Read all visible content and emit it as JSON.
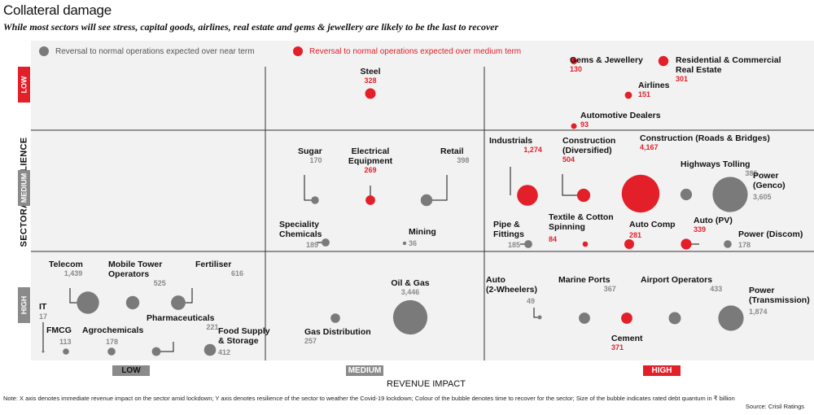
{
  "title": "Collateral damage",
  "subtitle": "While most sectors will see stress, capital goods, airlines, real estate and gems & jewellery are likely to be the last to recover",
  "legend": {
    "near": "Reversal to normal operations expected over near term",
    "medium": "Reversal to normal operations expected over medium term"
  },
  "colors": {
    "near": "#7a7a7a",
    "medium": "#e3202a",
    "panel": "#f2f2f2",
    "grid": "#333333"
  },
  "note": "Note: X axis denotes immediate revenue impact on the sector amid lockdown; Y axis denotes resilience of the sector to weather the Covid-19 lockdown; Colour of the bubble denotes time to recover for the sector; Size of the bubble indicates rated debt quantum in ₹ billion",
  "source": "Source: Crisil Ratings",
  "chart_data": {
    "type": "scatter",
    "title": "Collateral damage",
    "xlabel": "REVENUE IMPACT",
    "ylabel": "SECTORAL RESILIENCE",
    "x_categories": [
      "LOW",
      "MEDIUM",
      "HIGH"
    ],
    "y_categories": [
      "LOW",
      "MEDIUM",
      "HIGH"
    ],
    "size_unit": "rated debt, ₹ billion",
    "points": [
      {
        "name": "Steel",
        "x": "MEDIUM",
        "y": "LOW",
        "debt": "328",
        "recovery": "medium"
      },
      {
        "name": "Gems & Jewellery",
        "x": "HIGH",
        "y": "LOW",
        "debt": "130",
        "recovery": "medium"
      },
      {
        "name": "Residential & Commercial Real Estate",
        "x": "HIGH",
        "y": "LOW",
        "debt": "301",
        "recovery": "medium"
      },
      {
        "name": "Airlines",
        "x": "HIGH",
        "y": "LOW",
        "debt": "151",
        "recovery": "medium"
      },
      {
        "name": "Automotive Dealers",
        "x": "HIGH",
        "y": "LOW",
        "debt": "93",
        "recovery": "medium"
      },
      {
        "name": "Sugar",
        "x": "MEDIUM",
        "y": "MEDIUM",
        "debt": "170",
        "recovery": "near"
      },
      {
        "name": "Electrical Equipment",
        "x": "MEDIUM",
        "y": "MEDIUM",
        "debt": "269",
        "recovery": "medium"
      },
      {
        "name": "Retail",
        "x": "MEDIUM",
        "y": "MEDIUM",
        "debt": "398",
        "recovery": "near"
      },
      {
        "name": "Speciality Chemicals",
        "x": "MEDIUM",
        "y": "MEDIUM",
        "debt": "189",
        "recovery": "near"
      },
      {
        "name": "Mining",
        "x": "MEDIUM",
        "y": "MEDIUM",
        "debt": "36",
        "recovery": "near"
      },
      {
        "name": "Industrials",
        "x": "HIGH",
        "y": "MEDIUM",
        "debt": "1,274",
        "recovery": "medium"
      },
      {
        "name": "Construction (Diversified)",
        "x": "HIGH",
        "y": "MEDIUM",
        "debt": "504",
        "recovery": "medium"
      },
      {
        "name": "Construction (Roads & Bridges)",
        "x": "HIGH",
        "y": "MEDIUM",
        "debt": "4,167",
        "recovery": "medium"
      },
      {
        "name": "Highways Tolling",
        "x": "HIGH",
        "y": "MEDIUM",
        "debt": "386",
        "recovery": "near"
      },
      {
        "name": "Power (Genco)",
        "x": "HIGH",
        "y": "MEDIUM",
        "debt": "3,605",
        "recovery": "near"
      },
      {
        "name": "Pipe & Fittings",
        "x": "HIGH",
        "y": "MEDIUM",
        "debt": "185",
        "recovery": "near"
      },
      {
        "name": "Textile & Cotton Spinning",
        "x": "HIGH",
        "y": "MEDIUM",
        "debt": "84",
        "recovery": "medium"
      },
      {
        "name": "Auto Comp",
        "x": "HIGH",
        "y": "MEDIUM",
        "debt": "281",
        "recovery": "medium"
      },
      {
        "name": "Auto (PV)",
        "x": "HIGH",
        "y": "MEDIUM",
        "debt": "339",
        "recovery": "medium"
      },
      {
        "name": "Power (Discom)",
        "x": "HIGH",
        "y": "MEDIUM",
        "debt": "178",
        "recovery": "near"
      },
      {
        "name": "Telecom",
        "x": "LOW",
        "y": "HIGH",
        "debt": "1,439",
        "recovery": "near"
      },
      {
        "name": "Mobile Tower Operators",
        "x": "LOW",
        "y": "HIGH",
        "debt": "525",
        "recovery": "near"
      },
      {
        "name": "Fertiliser",
        "x": "LOW",
        "y": "HIGH",
        "debt": "616",
        "recovery": "near"
      },
      {
        "name": "IT",
        "x": "LOW",
        "y": "HIGH",
        "debt": "17",
        "recovery": "near"
      },
      {
        "name": "Pharmaceuticals",
        "x": "LOW",
        "y": "HIGH",
        "debt": "221",
        "recovery": "near"
      },
      {
        "name": "FMCG",
        "x": "LOW",
        "y": "HIGH",
        "debt": "113",
        "recovery": "near"
      },
      {
        "name": "Agrochemicals",
        "x": "LOW",
        "y": "HIGH",
        "debt": "178",
        "recovery": "near"
      },
      {
        "name": "Food Supply & Storage",
        "x": "LOW",
        "y": "HIGH",
        "debt": "412",
        "recovery": "near"
      },
      {
        "name": "Oil & Gas",
        "x": "MEDIUM",
        "y": "HIGH",
        "debt": "3,446",
        "recovery": "near"
      },
      {
        "name": "Gas Distribution",
        "x": "MEDIUM",
        "y": "HIGH",
        "debt": "257",
        "recovery": "near"
      },
      {
        "name": "Auto (2-Wheelers)",
        "x": "HIGH",
        "y": "HIGH",
        "debt": "49",
        "recovery": "near"
      },
      {
        "name": "Marine Ports",
        "x": "HIGH",
        "y": "HIGH",
        "debt": "367",
        "recovery": "near"
      },
      {
        "name": "Cement",
        "x": "HIGH",
        "y": "HIGH",
        "debt": "371",
        "recovery": "medium"
      },
      {
        "name": "Airport Operators",
        "x": "HIGH",
        "y": "HIGH",
        "debt": "433",
        "recovery": "near"
      },
      {
        "name": "Power (Transmission)",
        "x": "HIGH",
        "y": "HIGH",
        "debt": "1,874",
        "recovery": "near"
      }
    ]
  }
}
